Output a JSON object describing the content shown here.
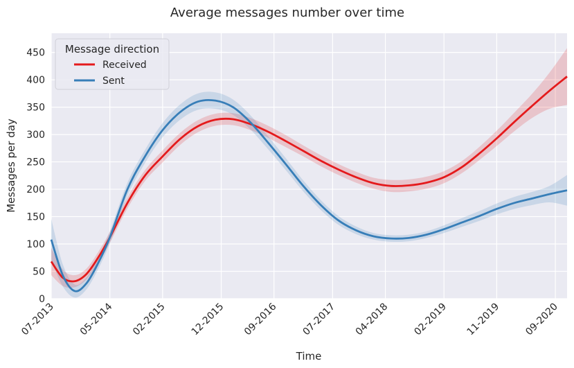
{
  "chart_data": {
    "type": "line",
    "title": "Average messages number over time",
    "xlabel": "Time",
    "ylabel": "Messages per day",
    "x_tick_labels": [
      "07-2013",
      "05-2014",
      "02-2015",
      "12-2015",
      "09-2016",
      "07-2017",
      "04-2018",
      "02-2019",
      "11-2019",
      "09-2020"
    ],
    "x_ticks": [
      "2013-07",
      "2014-05",
      "2015-02",
      "2015-12",
      "2016-09",
      "2017-07",
      "2018-04",
      "2019-02",
      "2019-11",
      "2020-09"
    ],
    "xlim": [
      "2013-07",
      "2020-11"
    ],
    "ylim": [
      0,
      485
    ],
    "y_ticks": [
      0,
      50,
      100,
      150,
      200,
      250,
      300,
      350,
      400,
      450
    ],
    "grid": true,
    "legend": {
      "title": "Message direction",
      "placement": "top-left"
    },
    "colors": {
      "background": "#eaeaf2",
      "grid": "#ffffff",
      "received": "#e41a1c",
      "sent": "#377eb8"
    },
    "series": [
      {
        "name": "Received",
        "color": "#e41a1c",
        "x": [
          "2013-07",
          "2013-09",
          "2013-11",
          "2014-01",
          "2014-03",
          "2014-05",
          "2014-08",
          "2014-11",
          "2015-02",
          "2015-05",
          "2015-08",
          "2015-11",
          "2016-02",
          "2016-05",
          "2016-08",
          "2016-11",
          "2017-02",
          "2017-05",
          "2017-08",
          "2017-11",
          "2018-02",
          "2018-05",
          "2018-08",
          "2018-11",
          "2019-02",
          "2019-05",
          "2019-08",
          "2019-11",
          "2020-02",
          "2020-05",
          "2020-08",
          "2020-11"
        ],
        "values": [
          68,
          38,
          32,
          45,
          75,
          112,
          175,
          225,
          260,
          292,
          315,
          327,
          328,
          319,
          305,
          288,
          270,
          252,
          236,
          222,
          211,
          206,
          207,
          212,
          222,
          240,
          265,
          293,
          323,
          352,
          380,
          406
        ],
        "ci_half_width": [
          25,
          15,
          11,
          10,
          10,
          10,
          10,
          10,
          11,
          11,
          11,
          11,
          11,
          11,
          11,
          11,
          10,
          10,
          10,
          10,
          10,
          11,
          11,
          11,
          11,
          11,
          12,
          14,
          17,
          22,
          33,
          52
        ]
      },
      {
        "name": "Sent",
        "color": "#377eb8",
        "x": [
          "2013-07",
          "2013-09",
          "2013-11",
          "2014-01",
          "2014-03",
          "2014-05",
          "2014-08",
          "2014-11",
          "2015-02",
          "2015-05",
          "2015-08",
          "2015-11",
          "2016-02",
          "2016-05",
          "2016-08",
          "2016-11",
          "2017-02",
          "2017-05",
          "2017-08",
          "2017-11",
          "2018-02",
          "2018-05",
          "2018-08",
          "2018-11",
          "2019-02",
          "2019-05",
          "2019-08",
          "2019-11",
          "2020-02",
          "2020-05",
          "2020-08",
          "2020-11"
        ],
        "values": [
          108,
          42,
          14,
          28,
          65,
          112,
          200,
          260,
          308,
          341,
          360,
          362,
          350,
          322,
          285,
          246,
          206,
          171,
          143,
          125,
          114,
          110,
          111,
          117,
          127,
          139,
          151,
          164,
          175,
          183,
          191,
          198
        ],
        "ci_half_width": [
          38,
          20,
          12,
          11,
          11,
          11,
          12,
          12,
          13,
          14,
          15,
          15,
          14,
          13,
          12,
          11,
          10,
          9,
          8,
          7,
          6,
          6,
          6,
          6,
          7,
          8,
          9,
          10,
          11,
          12,
          15,
          28
        ]
      }
    ]
  }
}
